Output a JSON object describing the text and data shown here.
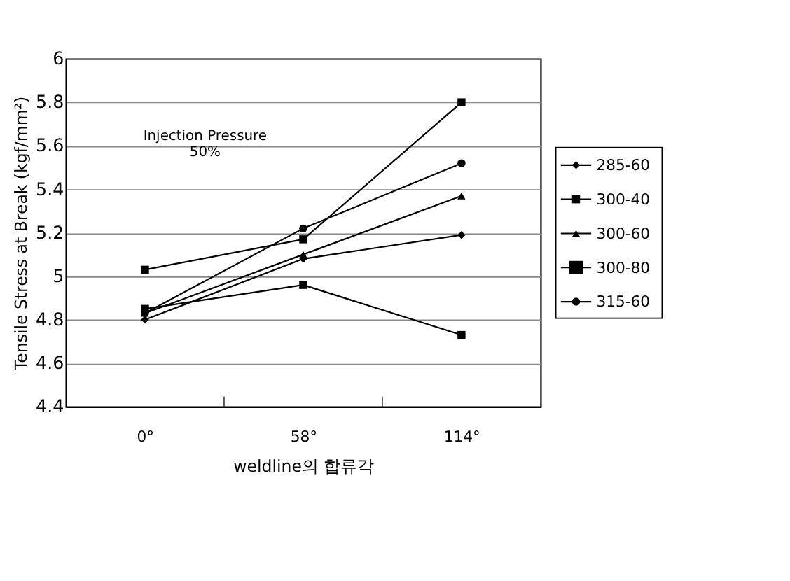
{
  "chart_data": {
    "type": "line",
    "xlabel": "weldline의 합류각",
    "ylabel": "Tensile Stress at Break (kgf/mm²)",
    "categories": [
      "0°",
      "58°",
      "114°"
    ],
    "series": [
      {
        "name": "285-60",
        "color": "#000000",
        "marker": "diamond",
        "values": [
          4.8,
          5.08,
          5.19
        ]
      },
      {
        "name": "300-40",
        "color": "#000000",
        "marker": "square",
        "values": [
          4.85,
          4.96,
          4.73
        ]
      },
      {
        "name": "300-60",
        "color": "#000000",
        "marker": "triangle",
        "values": [
          4.83,
          5.1,
          5.37
        ]
      },
      {
        "name": "300-80",
        "color": "#000000",
        "marker": "square",
        "values": [
          5.03,
          5.17,
          5.8
        ]
      },
      {
        "name": "315-60",
        "color": "#000000",
        "marker": "circle",
        "values": [
          4.83,
          5.22,
          5.52
        ]
      }
    ],
    "ylim": [
      4.4,
      6
    ],
    "yticks": [
      4.4,
      4.6,
      4.8,
      5,
      5.2,
      5.4,
      5.6,
      5.8,
      6
    ],
    "grid": "y",
    "legend": "right",
    "annotations": [
      "Injection Pressure\n50%"
    ]
  }
}
